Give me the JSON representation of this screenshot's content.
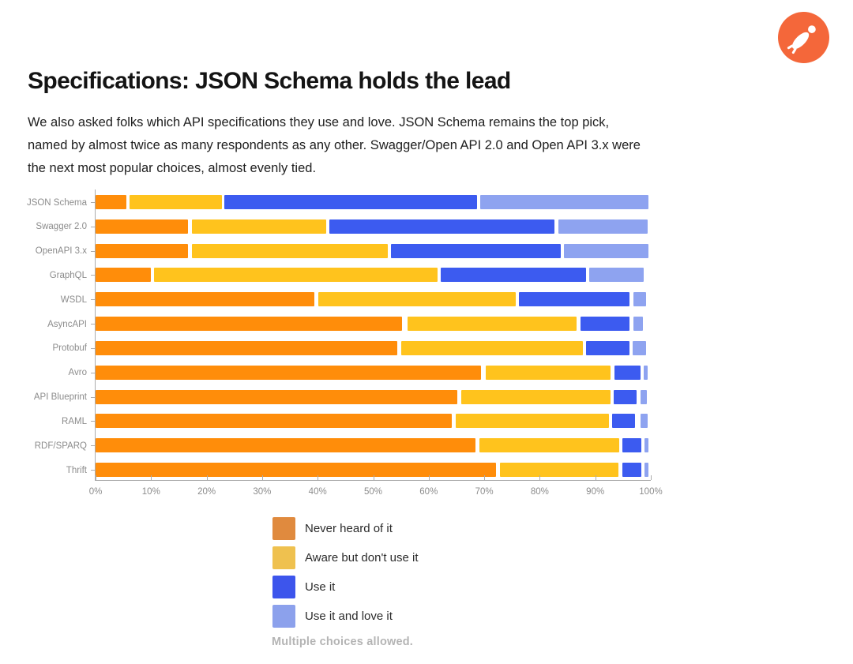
{
  "logo": {
    "label": "Postman logo",
    "color": "#F4673A"
  },
  "header": {
    "title": "Specifications: JSON Schema holds the lead"
  },
  "intro": {
    "text": "We also asked folks which API specifications they use and love. JSON Schema remains the top pick, named by almost twice as many respondents as any other. Swagger/Open API 2.0 and Open API 3.x were the next most popular choices, almost evenly tied."
  },
  "chart_data": {
    "type": "bar",
    "variant": "horizontal-stacked-percent",
    "categories": [
      "JSON Schema",
      "Swagger 2.0",
      "OpenAPI 3.x",
      "GraphQL",
      "WSDL",
      "AsyncAPI",
      "Protobuf",
      "Avro",
      "API Blueprint",
      "RAML",
      "RDF/SPARQ",
      "Thrift"
    ],
    "series": [
      {
        "name": "Never heard of it",
        "color": "#FF8D0A",
        "legend_color": "#E08A3E",
        "values": [
          6,
          17,
          17,
          10,
          39,
          55,
          54,
          69,
          65,
          64,
          68,
          72
        ]
      },
      {
        "name": "Aware but don't use it",
        "color": "#FFC31D",
        "legend_color": "#EFC14F",
        "values": [
          17,
          24,
          35,
          51,
          36,
          31,
          33,
          23,
          27,
          28,
          25,
          21
        ]
      },
      {
        "name": "Use it",
        "color": "#3C5BF0",
        "legend_color": "#3D55EC",
        "values": [
          45,
          41,
          31,
          26,
          20,
          9,
          8,
          5,
          4,
          4,
          3,
          3
        ]
      },
      {
        "name": "Use it and love it",
        "color": "#8EA3F0",
        "legend_color": "#8CA1EC",
        "values": [
          30,
          16,
          15,
          10,
          2,
          2,
          2,
          1,
          1,
          1,
          1,
          1
        ]
      }
    ],
    "rows": [
      {
        "label": "JSON Schema",
        "segments": [
          [
            0,
            5.5
          ],
          [
            6.1,
            16.6
          ],
          [
            23.2,
            45.5
          ],
          [
            69.3,
            30.3
          ]
        ]
      },
      {
        "label": "Swagger 2.0",
        "segments": [
          [
            0,
            16.7
          ],
          [
            17.3,
            24.2
          ],
          [
            42.1,
            40.6
          ],
          [
            83.3,
            16.2
          ]
        ]
      },
      {
        "label": "OpenAPI 3.x",
        "segments": [
          [
            0,
            16.7
          ],
          [
            17.3,
            35.3
          ],
          [
            53.2,
            30.6
          ],
          [
            84.4,
            15.2
          ]
        ]
      },
      {
        "label": "GraphQL",
        "segments": [
          [
            0,
            9.9
          ],
          [
            10.5,
            51.1
          ],
          [
            62.2,
            26.1
          ],
          [
            88.9,
            9.8
          ]
        ]
      },
      {
        "label": "WSDL",
        "segments": [
          [
            0,
            39.4
          ],
          [
            40.1,
            35.6
          ],
          [
            76.3,
            19.9
          ],
          [
            96.8,
            2.4
          ]
        ]
      },
      {
        "label": "AsyncAPI",
        "segments": [
          [
            0,
            55.2
          ],
          [
            56.2,
            30.5
          ],
          [
            87.3,
            8.9
          ],
          [
            96.8,
            1.8
          ]
        ]
      },
      {
        "label": "Protobuf",
        "segments": [
          [
            0,
            54.3
          ],
          [
            55.1,
            32.6
          ],
          [
            88.3,
            7.8
          ],
          [
            96.7,
            2.5
          ]
        ]
      },
      {
        "label": "Avro",
        "segments": [
          [
            0,
            69.4
          ],
          [
            70.2,
            22.6
          ],
          [
            93.4,
            4.7
          ],
          [
            98.7,
            0.8
          ]
        ]
      },
      {
        "label": "API Blueprint",
        "segments": [
          [
            0,
            65.1
          ],
          [
            65.9,
            26.8
          ],
          [
            93.3,
            4.2
          ],
          [
            98.1,
            1.2
          ]
        ]
      },
      {
        "label": "RAML",
        "segments": [
          [
            0,
            64.1
          ],
          [
            64.9,
            27.6
          ],
          [
            93.1,
            4.1
          ],
          [
            98.1,
            1.3
          ]
        ]
      },
      {
        "label": "RDF/SPARQ",
        "segments": [
          [
            0,
            68.4
          ],
          [
            69.2,
            25.1
          ],
          [
            94.9,
            3.4
          ],
          [
            98.9,
            0.7
          ]
        ]
      },
      {
        "label": "Thrift",
        "segments": [
          [
            0,
            72.1
          ],
          [
            72.9,
            21.3
          ],
          [
            94.9,
            3.4
          ],
          [
            98.9,
            0.7
          ]
        ]
      }
    ],
    "x_ticks": [
      "0%",
      "10%",
      "20%",
      "30%",
      "40%",
      "50%",
      "60%",
      "70%",
      "80%",
      "90%",
      "100%"
    ],
    "xlim": [
      0,
      100
    ],
    "grid": false,
    "legend_position": "bottom",
    "note": "Multiple choices allowed."
  }
}
